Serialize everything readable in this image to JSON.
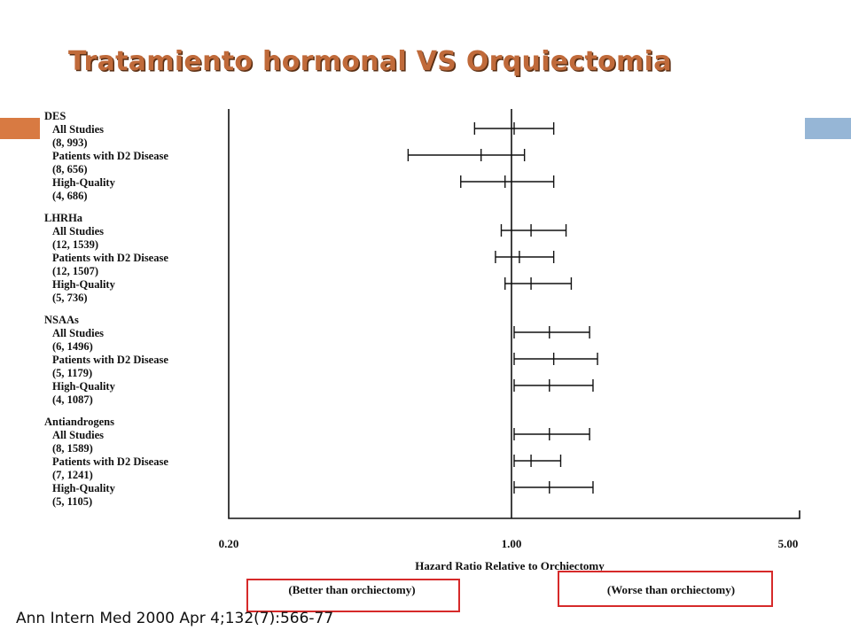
{
  "slide": {
    "title": "Tratamiento hormonal VS Orquiectomia",
    "citation": "Ann Intern Med 2000 Apr 4;132(7):566-77",
    "colors": {
      "accent_orange": "#d87a42",
      "accent_blue": "#96b6d6",
      "callout_red": "#d62a2a"
    }
  },
  "chart_data": {
    "type": "forest",
    "xlabel": "Hazard Ratio Relative to Orchiectomy",
    "x_scale": "log",
    "xlim": [
      0.2,
      5.0
    ],
    "xticks": [
      "0.20",
      "1.00",
      "5.00"
    ],
    "reference_value": 1.0,
    "region_labels": {
      "left": "(Better than orchiectomy)",
      "right": "(Worse than orchiectomy)"
    },
    "groups": [
      {
        "name": "DES",
        "rows": [
          {
            "label": "All Studies",
            "n": "(8, 993)",
            "hr": 1.0,
            "lo": 0.8,
            "hi": 1.25
          },
          {
            "label": "Patients with D2 Disease",
            "n": "(8, 656)",
            "hr": 0.83,
            "lo": 0.55,
            "hi": 1.06
          },
          {
            "label": "High-Quality",
            "n": "(4, 686)",
            "hr": 0.95,
            "lo": 0.74,
            "hi": 1.25
          }
        ]
      },
      {
        "name": "LHRHa",
        "rows": [
          {
            "label": "All Studies",
            "n": "(12, 1539)",
            "hr": 1.1,
            "lo": 0.93,
            "hi": 1.34
          },
          {
            "label": "Patients with D2 Disease",
            "n": "(12, 1507)",
            "hr": 1.03,
            "lo": 0.9,
            "hi": 1.25
          },
          {
            "label": "High-Quality",
            "n": "(5, 736)",
            "hr": 1.1,
            "lo": 0.95,
            "hi": 1.38
          }
        ]
      },
      {
        "name": "NSAAs",
        "rows": [
          {
            "label": "All Studies",
            "n": "(6, 1496)",
            "hr": 1.22,
            "lo": 1.0,
            "hi": 1.53
          },
          {
            "label": "Patients with D2 Disease",
            "n": "(5, 1179)",
            "hr": 1.25,
            "lo": 1.0,
            "hi": 1.6
          },
          {
            "label": "High-Quality",
            "n": "(4, 1087)",
            "hr": 1.22,
            "lo": 1.0,
            "hi": 1.56
          }
        ]
      },
      {
        "name": "Antiandrogens",
        "rows": [
          {
            "label": "All Studies",
            "n": "(8, 1589)",
            "hr": 1.22,
            "lo": 1.0,
            "hi": 1.53
          },
          {
            "label": "Patients with D2 Disease",
            "n": "(7, 1241)",
            "hr": 1.1,
            "lo": 1.0,
            "hi": 1.3
          },
          {
            "label": "High-Quality",
            "n": "(5, 1105)",
            "hr": 1.22,
            "lo": 1.0,
            "hi": 1.56
          }
        ]
      }
    ]
  }
}
